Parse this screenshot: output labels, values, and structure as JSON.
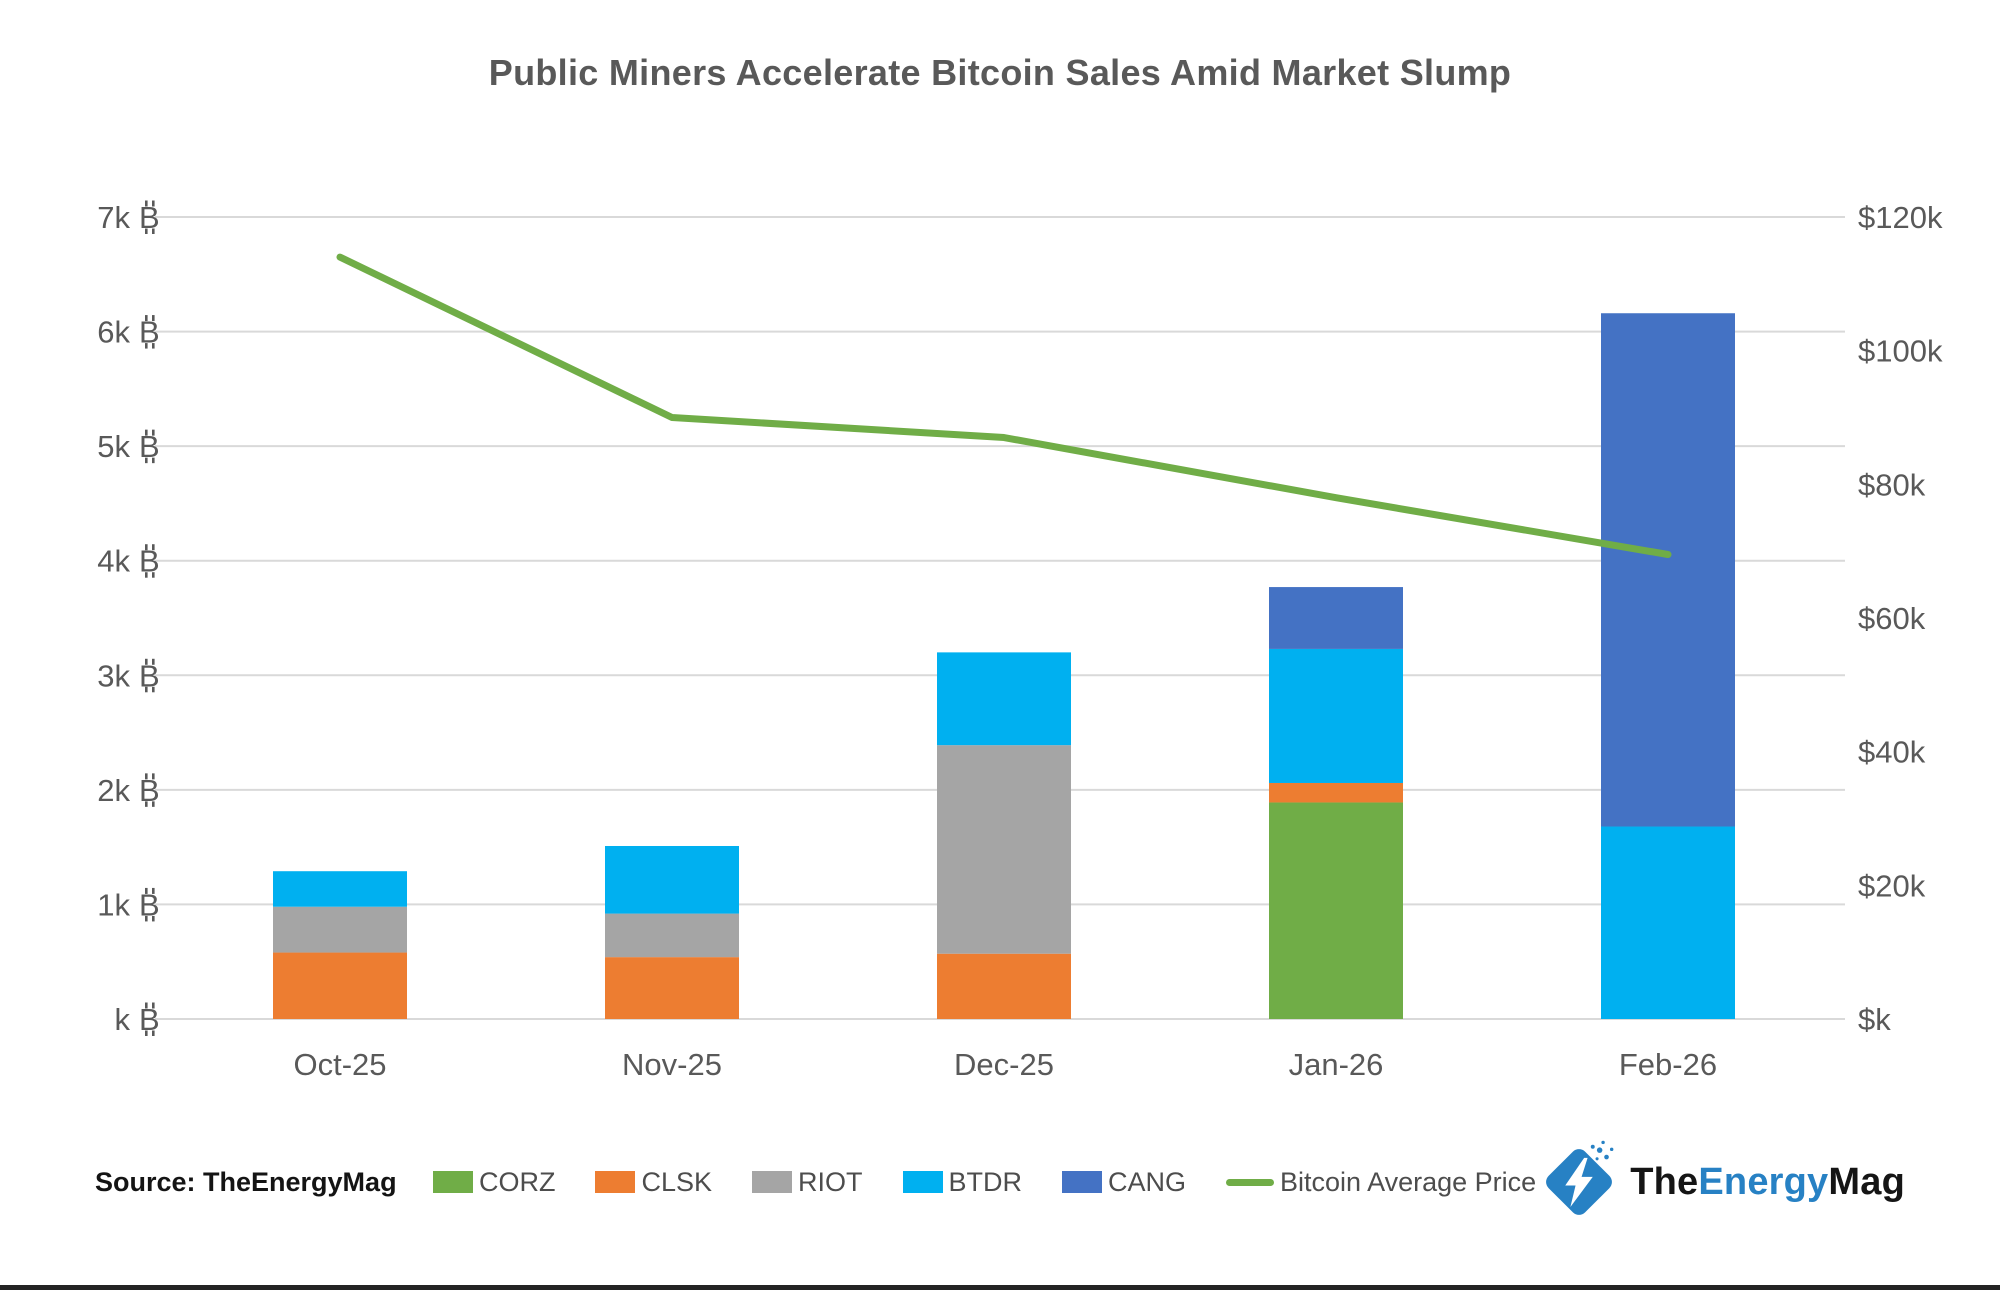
{
  "page": {
    "title": "Public Miners Accelerate Bitcoin Sales Amid Market Slump",
    "source_note": "Source: TheEnergyMag",
    "brand": {
      "the": "The",
      "energy": "Energy",
      "mag": "Mag"
    }
  },
  "colors": {
    "title_text": "#595959",
    "axis_text": "#595959",
    "gridline": "#d9d9d9",
    "legend_text": "#4d4d4d",
    "source_text": "#141414",
    "brand_blue": "#2781c4",
    "corz_green": "#70AD47",
    "clsk_orange": "#ED7D31",
    "riot_gray": "#A5A5A5",
    "btdr_cyan": "#00B0F0",
    "cang_blue": "#4472C4",
    "price_line_green": "#70AD47"
  },
  "chart_data": {
    "type": "bar",
    "subtype": "stacked-bars-with-line-overlay",
    "title": "Public Miners Accelerate Bitcoin Sales Amid Market Slump",
    "categories": [
      "Oct-25",
      "Nov-25",
      "Dec-25",
      "Jan-26",
      "Feb-26"
    ],
    "series": [
      {
        "name": "CORZ",
        "type": "bar",
        "axis": "left",
        "color": "#70AD47",
        "values": [
          0,
          0,
          0,
          1890,
          0
        ]
      },
      {
        "name": "CLSK",
        "type": "bar",
        "axis": "left",
        "color": "#ED7D31",
        "values": [
          580,
          540,
          570,
          170,
          0
        ]
      },
      {
        "name": "RIOT",
        "type": "bar",
        "axis": "left",
        "color": "#A5A5A5",
        "values": [
          400,
          380,
          1820,
          0,
          0
        ]
      },
      {
        "name": "BTDR",
        "type": "bar",
        "axis": "left",
        "color": "#00B0F0",
        "values": [
          310,
          590,
          810,
          1170,
          1680
        ]
      },
      {
        "name": "CANG",
        "type": "bar",
        "axis": "left",
        "color": "#4472C4",
        "values": [
          0,
          0,
          0,
          540,
          4480
        ]
      },
      {
        "name": "Bitcoin Average Price",
        "type": "line",
        "axis": "right",
        "color": "#70AD47",
        "values": [
          114000,
          90000,
          87000,
          78000,
          69500
        ]
      }
    ],
    "left_axis": {
      "ticks": [
        "k ₿",
        "1k ₿",
        "2k ₿",
        "3k ₿",
        "4k ₿",
        "5k ₿",
        "6k ₿",
        "7k ₿"
      ],
      "min": 0,
      "max": 7000
    },
    "right_axis": {
      "ticks": [
        "$k",
        "$20k",
        "$40k",
        "$60k",
        "$80k",
        "$100k",
        "$120k"
      ],
      "min": 0,
      "max": 120000
    },
    "grid": true,
    "legend_position": "bottom"
  }
}
